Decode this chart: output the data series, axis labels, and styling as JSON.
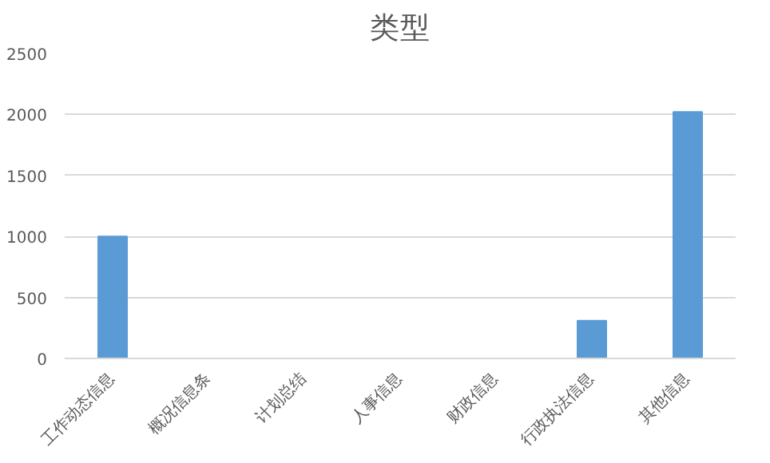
{
  "chart_data": {
    "type": "bar",
    "title": "类型",
    "categories": [
      "工作动态信息",
      "概况信息条",
      "计划总结",
      "人事信息",
      "财政信息",
      "行政执法信息",
      "其他信息"
    ],
    "values": [
      1000,
      0,
      0,
      0,
      0,
      310,
      2020
    ],
    "color": "#5b9bd5",
    "ylim": [
      0,
      2500
    ],
    "yticks": [
      0,
      500,
      1000,
      1500,
      2000,
      2500
    ],
    "grid": "y"
  }
}
